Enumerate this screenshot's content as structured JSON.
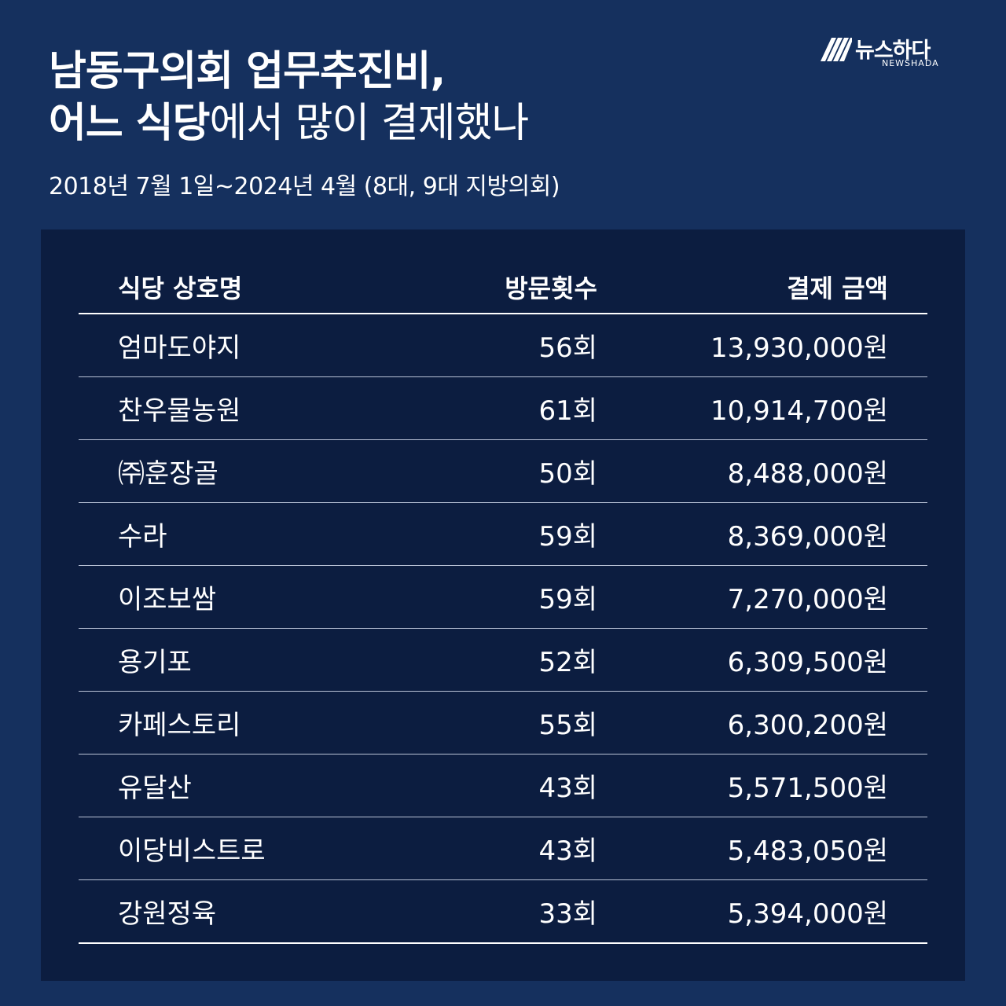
{
  "header": {
    "title_line1": "남동구의회 업무추진비,",
    "title_line2_bold": "어느 식당",
    "title_line2_rest": "에서 많이 결제했나",
    "subtitle": "2018년 7월 1일~2024년 4월 (8대, 9대 지방의회)"
  },
  "logo": {
    "name": "뉴스하다",
    "sub": "NEWSHADA",
    "icon": "newshada-logo-icon"
  },
  "table": {
    "headers": {
      "name": "식당 상호명",
      "visits": "방문횟수",
      "amount": "결제 금액"
    },
    "rows": [
      {
        "name": "엄마도야지",
        "visits": "56회",
        "amount": "13,930,000원"
      },
      {
        "name": "찬우물농원",
        "visits": "61회",
        "amount": "10,914,700원"
      },
      {
        "name": "㈜훈장골",
        "visits": "50회",
        "amount": "8,488,000원"
      },
      {
        "name": "수라",
        "visits": "59회",
        "amount": "8,369,000원"
      },
      {
        "name": "이조보쌈",
        "visits": "59회",
        "amount": "7,270,000원"
      },
      {
        "name": "용기포",
        "visits": "52회",
        "amount": "6,309,500원"
      },
      {
        "name": "카페스토리",
        "visits": "55회",
        "amount": "6,300,200원"
      },
      {
        "name": "유달산",
        "visits": "43회",
        "amount": "5,571,500원"
      },
      {
        "name": "이당비스트로",
        "visits": "43회",
        "amount": "5,483,050원"
      },
      {
        "name": "강원정육",
        "visits": "33회",
        "amount": "5,394,000원"
      }
    ]
  },
  "colors": {
    "background": "#15305e",
    "panel": "#0c1d40",
    "text": "#ffffff"
  }
}
